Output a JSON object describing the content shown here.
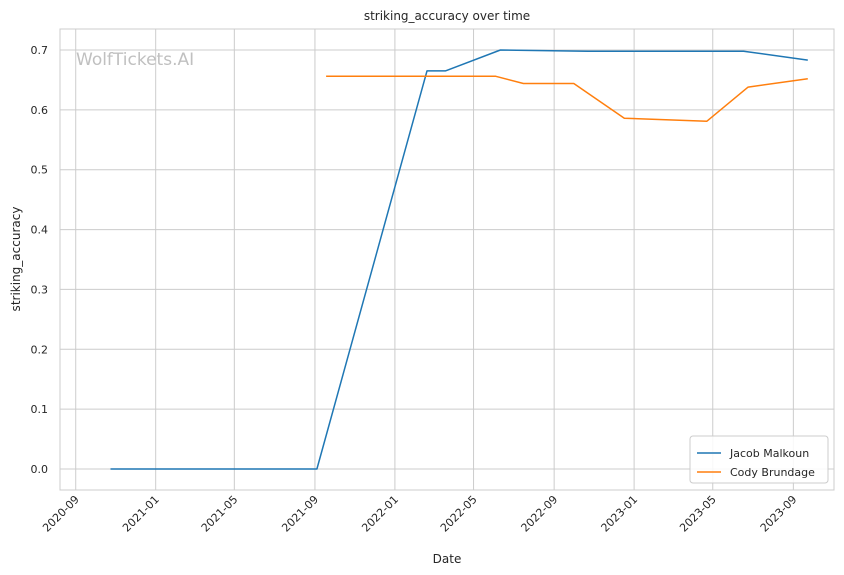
{
  "watermark": "WolfTickets.AI",
  "chart_data": {
    "type": "line",
    "title": "striking_accuracy over time",
    "xlabel": "Date",
    "ylabel": "striking_accuracy",
    "x_ticks": [
      "2020-09",
      "2021-01",
      "2021-05",
      "2021-09",
      "2022-01",
      "2022-05",
      "2022-09",
      "2023-01",
      "2023-05",
      "2023-09"
    ],
    "y_ticks": [
      0.0,
      0.1,
      0.2,
      0.3,
      0.4,
      0.5,
      0.6,
      0.7
    ],
    "xlim": [
      "2020-08-08",
      "2023-11-02"
    ],
    "ylim": [
      -0.035,
      0.735
    ],
    "grid": true,
    "legend_position": "lower-right",
    "colors": {
      "Jacob Malkoun": "#1f77b4",
      "Cody Brundage": "#ff7f0e"
    },
    "series": [
      {
        "name": "Jacob Malkoun",
        "points": [
          {
            "x": "2020-10-24",
            "y": 0.0
          },
          {
            "x": "2021-09-04",
            "y": 0.0
          },
          {
            "x": "2022-02-19",
            "y": 0.665
          },
          {
            "x": "2022-03-19",
            "y": 0.665
          },
          {
            "x": "2022-06-11",
            "y": 0.7
          },
          {
            "x": "2022-10-22",
            "y": 0.698
          },
          {
            "x": "2023-02-25",
            "y": 0.698
          },
          {
            "x": "2023-06-17",
            "y": 0.698
          },
          {
            "x": "2023-09-23",
            "y": 0.683
          }
        ]
      },
      {
        "name": "Cody Brundage",
        "points": [
          {
            "x": "2021-09-18",
            "y": 0.656
          },
          {
            "x": "2022-06-04",
            "y": 0.656
          },
          {
            "x": "2022-07-16",
            "y": 0.644
          },
          {
            "x": "2022-10-01",
            "y": 0.644
          },
          {
            "x": "2022-12-17",
            "y": 0.586
          },
          {
            "x": "2023-04-22",
            "y": 0.581
          },
          {
            "x": "2023-06-24",
            "y": 0.638
          },
          {
            "x": "2023-09-23",
            "y": 0.652
          }
        ]
      }
    ]
  }
}
